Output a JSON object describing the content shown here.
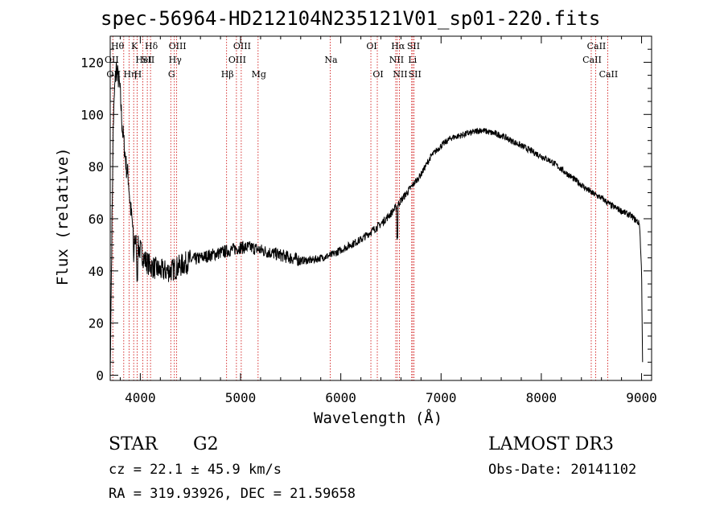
{
  "chart_data": {
    "type": "line",
    "title": "spec-56964-HD212104N235121V01_sp01-220.fits",
    "xlabel": "Wavelength (Å)",
    "ylabel": "Flux (relative)",
    "xlim": [
      3700,
      9100
    ],
    "ylim": [
      -2,
      130
    ],
    "xticks": [
      4000,
      5000,
      6000,
      7000,
      8000,
      9000
    ],
    "yticks": [
      0,
      20,
      40,
      60,
      80,
      100,
      120
    ],
    "xtick_labels": [
      "4000",
      "5000",
      "6000",
      "7000",
      "8000",
      "9000"
    ],
    "ytick_labels": [
      "0",
      "20",
      "40",
      "60",
      "80",
      "100",
      "120"
    ],
    "series": [
      {
        "name": "flux",
        "x": [
          3700,
          3715,
          3730,
          3745,
          3760,
          3775,
          3790,
          3800,
          3820,
          3840,
          3860,
          3880,
          3900,
          3930,
          3960,
          4000,
          4050,
          4100,
          4150,
          4200,
          4250,
          4300,
          4350,
          4400,
          4450,
          4500,
          4600,
          4700,
          4800,
          4900,
          5000,
          5100,
          5200,
          5300,
          5400,
          5500,
          5600,
          5700,
          5800,
          5900,
          6000,
          6100,
          6200,
          6300,
          6400,
          6500,
          6560,
          6600,
          6700,
          6800,
          6900,
          7000,
          7100,
          7200,
          7300,
          7400,
          7500,
          7600,
          7700,
          7800,
          7900,
          8000,
          8100,
          8200,
          8300,
          8400,
          8500,
          8600,
          8700,
          8800,
          8900,
          8980,
          9000,
          9010
        ],
        "y": [
          0,
          50,
          95,
          110,
          118,
          115,
          112,
          108,
          95,
          88,
          80,
          76,
          65,
          55,
          50,
          48,
          44,
          42,
          41,
          40,
          40,
          40,
          41,
          42,
          43,
          44,
          45,
          46,
          47,
          48,
          49,
          49,
          48,
          47,
          46,
          45,
          44,
          44,
          45,
          46,
          48,
          50,
          52,
          55,
          58,
          62,
          65,
          67,
          72,
          77,
          84,
          88,
          91,
          92,
          93,
          94,
          93,
          92,
          90,
          88,
          86,
          84,
          82,
          79,
          76,
          73,
          70,
          68,
          65,
          63,
          61,
          58,
          40,
          5
        ]
      }
    ],
    "lines": [
      {
        "w": 3726,
        "label": "OII",
        "row": 2
      },
      {
        "w": 3835,
        "label": "",
        "row": 0
      },
      {
        "w": 3889,
        "label": "Hη",
        "row": 2
      },
      {
        "w": 3934,
        "label": "K",
        "row": 0
      },
      {
        "w": 3968,
        "label": "H",
        "row": 2
      },
      {
        "w": 4026,
        "label": "HeI",
        "row": 1
      },
      {
        "w": 4070,
        "label": "SII",
        "row": 1
      },
      {
        "w": 4102,
        "label": "Hδ",
        "row": 0
      },
      {
        "w": 4304,
        "label": "G",
        "row": 2
      },
      {
        "w": 4340,
        "label": "Hγ",
        "row": 1
      },
      {
        "w": 4363,
        "label": "OIII",
        "row": 0
      },
      {
        "w": 4861,
        "label": "Hβ",
        "row": 2
      },
      {
        "w": 4959,
        "label": "OIII",
        "row": 1
      },
      {
        "w": 5007,
        "label": "OIII",
        "row": 0
      },
      {
        "w": 5175,
        "label": "Mg",
        "row": 2
      },
      {
        "w": 5894,
        "label": "Na",
        "row": 1
      },
      {
        "w": 6300,
        "label": "OI",
        "row": 0
      },
      {
        "w": 6364,
        "label": "OI",
        "row": 2
      },
      {
        "w": 6548,
        "label": "NII",
        "row": 1
      },
      {
        "w": 6563,
        "label": "Hα",
        "row": 0
      },
      {
        "w": 6584,
        "label": "NII",
        "row": 2
      },
      {
        "w": 6707,
        "label": "Li",
        "row": 1
      },
      {
        "w": 6717,
        "label": "SII",
        "row": 0
      },
      {
        "w": 6731,
        "label": "SII",
        "row": 2
      },
      {
        "w": 8498,
        "label": "CaII",
        "row": 1
      },
      {
        "w": 8542,
        "label": "CaII",
        "row": 0
      },
      {
        "w": 8662,
        "label": "CaII",
        "row": 2
      }
    ],
    "top_labels": {
      "row0_left": "Hθ",
      "row1_left": "OII",
      "row0_kd": "K Hδ"
    },
    "colors": {
      "line": "#000000",
      "marker": "#cc0000",
      "axes": "#000000"
    }
  },
  "footer": {
    "object": "STAR",
    "subclass": "G2",
    "cz": "cz = 22.1 ± 45.9 km/s",
    "radec": "RA = 319.93926, DEC =  21.59658",
    "survey": "LAMOST DR3",
    "obsdate": "Obs-Date: 20141102"
  }
}
